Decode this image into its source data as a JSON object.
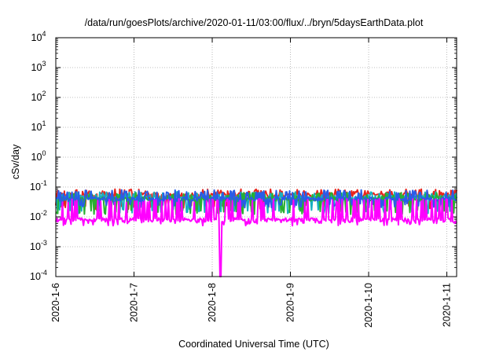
{
  "chart_data": {
    "type": "line",
    "title": "/data/run/goesPlots/archive/2020-01-11/03:00/flux/../bryn/5daysEarthData.plot",
    "xlabel": "Coordinated Universal Time (UTC)",
    "ylabel": "cSv/day",
    "x_range": [
      "2020-01-06T00:00",
      "2020-01-11T03:00"
    ],
    "y_scale": "log",
    "ylim": [
      0.0001,
      10000
    ],
    "grid": true,
    "x_tick_labels": [
      "2020-1-6",
      "2020-1-7",
      "2020-1-8",
      "2020-1-9",
      "2020-1-10",
      "2020-1-11"
    ],
    "y_ticks": [
      {
        "base": "10",
        "exp": "-4"
      },
      {
        "base": "10",
        "exp": "-3"
      },
      {
        "base": "10",
        "exp": "-2"
      },
      {
        "base": "10",
        "exp": "-1"
      },
      {
        "base": "10",
        "exp": "0"
      },
      {
        "base": "10",
        "exp": "1"
      },
      {
        "base": "10",
        "exp": "2"
      },
      {
        "base": "10",
        "exp": "3"
      },
      {
        "base": "10",
        "exp": "4"
      }
    ],
    "series": [
      {
        "color": "#e8241b",
        "base": 0.055,
        "spike_max": 0.085,
        "dip_min": 0.018
      },
      {
        "color": "#17b0c0",
        "base": 0.045,
        "spike_max": 0.07,
        "dip_min": 0.013
      },
      {
        "color": "#28b030",
        "base": 0.04,
        "spike_max": 0.065,
        "dip_min": 0.012
      },
      {
        "color": "#2a5ce8",
        "base": 0.04,
        "spike_max": 0.08,
        "dip_min": 0.02
      },
      {
        "color": "#ff00ff",
        "base": 0.008,
        "spike_max": 0.04,
        "dip_min": 0.005,
        "dropout": {
          "at": "2020-01-08T02:30",
          "min": 0.0001
        }
      }
    ]
  }
}
